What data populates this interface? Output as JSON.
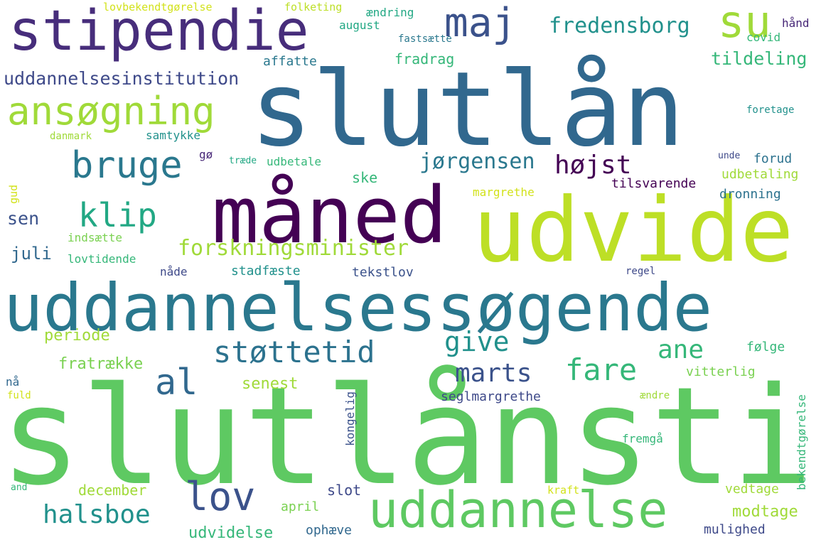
{
  "word_cloud": {
    "background": "#ffffff",
    "words": [
      {
        "text": "slutlånstid",
        "color": "#5ec962"
      },
      {
        "text": "slutlån",
        "color": "#31688e"
      },
      {
        "text": "uddannelsessøgende",
        "color": "#2a788e"
      },
      {
        "text": "udvide",
        "color": "#bddf26"
      },
      {
        "text": "måned",
        "color": "#440154"
      },
      {
        "text": "stipendie",
        "color": "#472d7b"
      },
      {
        "text": "uddannelse",
        "color": "#5ec962"
      },
      {
        "text": "ansøgning",
        "color": "#a0da39"
      },
      {
        "text": "su",
        "color": "#a0da39"
      },
      {
        "text": "bruge",
        "color": "#2a788e"
      },
      {
        "text": "maj",
        "color": "#3b528b"
      },
      {
        "text": "lov",
        "color": "#3b528b"
      },
      {
        "text": "al",
        "color": "#31688e"
      },
      {
        "text": "klip",
        "color": "#22a884"
      },
      {
        "text": "støttetid",
        "color": "#2c728e"
      },
      {
        "text": "fare",
        "color": "#35b779"
      },
      {
        "text": "give",
        "color": "#21918c"
      },
      {
        "text": "marts",
        "color": "#3b528b"
      },
      {
        "text": "halsboe",
        "color": "#21918c"
      },
      {
        "text": "ane",
        "color": "#35b779"
      },
      {
        "text": "forskningsminister",
        "color": "#a0da39"
      },
      {
        "text": "fredensborg",
        "color": "#21918c"
      },
      {
        "text": "jørgensen",
        "color": "#2a788e"
      },
      {
        "text": "højst",
        "color": "#440154"
      },
      {
        "text": "uddannelsesinstitution",
        "color": "#3e4989"
      },
      {
        "text": "tildeling",
        "color": "#35b779"
      },
      {
        "text": "sen",
        "color": "#3b528b"
      },
      {
        "text": "juli",
        "color": "#31688e"
      },
      {
        "text": "periode",
        "color": "#a0da39"
      },
      {
        "text": "fratrække",
        "color": "#7ad151"
      },
      {
        "text": "senest",
        "color": "#a0da39"
      },
      {
        "text": "modtage",
        "color": "#a0da39"
      },
      {
        "text": "udvidelse",
        "color": "#35b779"
      },
      {
        "text": "december",
        "color": "#a0da39"
      },
      {
        "text": "seglmargrethe",
        "color": "#3e4989"
      },
      {
        "text": "tekstlov",
        "color": "#3b528b"
      },
      {
        "text": "stadfæste",
        "color": "#21918c"
      },
      {
        "text": "slot",
        "color": "#3e4989"
      },
      {
        "text": "april",
        "color": "#7ad151"
      },
      {
        "text": "ophæve",
        "color": "#31688e"
      },
      {
        "text": "mulighed",
        "color": "#3e4989"
      },
      {
        "text": "vedtage",
        "color": "#a0da39"
      },
      {
        "text": "følge",
        "color": "#35b779"
      },
      {
        "text": "vitterlig",
        "color": "#7ad151"
      },
      {
        "text": "dronning",
        "color": "#2c728e"
      },
      {
        "text": "udbetaling",
        "color": "#a0da39"
      },
      {
        "text": "tilsvarende",
        "color": "#440154"
      },
      {
        "text": "forud",
        "color": "#2c728e"
      },
      {
        "text": "margrethe",
        "color": "#d2e21b"
      },
      {
        "text": "udbetale",
        "color": "#35b779"
      },
      {
        "text": "ske",
        "color": "#35b779"
      },
      {
        "text": "samtykke",
        "color": "#21918c"
      },
      {
        "text": "affatte",
        "color": "#2a788e"
      },
      {
        "text": "august",
        "color": "#22a884"
      },
      {
        "text": "fradrag",
        "color": "#35b779"
      },
      {
        "text": "ændring",
        "color": "#22a884"
      },
      {
        "text": "covid",
        "color": "#35b779"
      },
      {
        "text": "hånd",
        "color": "#482878"
      },
      {
        "text": "foretage",
        "color": "#21918c"
      },
      {
        "text": "lovbekendtgørelse",
        "color": "#d2e21b"
      },
      {
        "text": "folketing",
        "color": "#bddf26"
      },
      {
        "text": "fastsætte",
        "color": "#2a788e"
      },
      {
        "text": "danmark",
        "color": "#a0da39"
      },
      {
        "text": "gø",
        "color": "#482878"
      },
      {
        "text": "træde",
        "color": "#22a884"
      },
      {
        "text": "unde",
        "color": "#3e4989"
      },
      {
        "text": "indsætte",
        "color": "#7ad151"
      },
      {
        "text": "lovtidende",
        "color": "#35b779"
      },
      {
        "text": "nåde",
        "color": "#3e4989"
      },
      {
        "text": "regel",
        "color": "#3e4989"
      },
      {
        "text": "fremgå",
        "color": "#35b779"
      },
      {
        "text": "kraft",
        "color": "#d2e21b"
      },
      {
        "text": "ændre",
        "color": "#a0da39"
      },
      {
        "text": "nå",
        "color": "#31688e"
      },
      {
        "text": "fuld",
        "color": "#d2e21b"
      },
      {
        "text": "and",
        "color": "#35b779"
      },
      {
        "text": "gud",
        "color": "#d2e21b"
      },
      {
        "text": "kongelig",
        "color": "#3b528b"
      },
      {
        "text": "bekendtgørelse",
        "color": "#35b779"
      }
    ]
  }
}
